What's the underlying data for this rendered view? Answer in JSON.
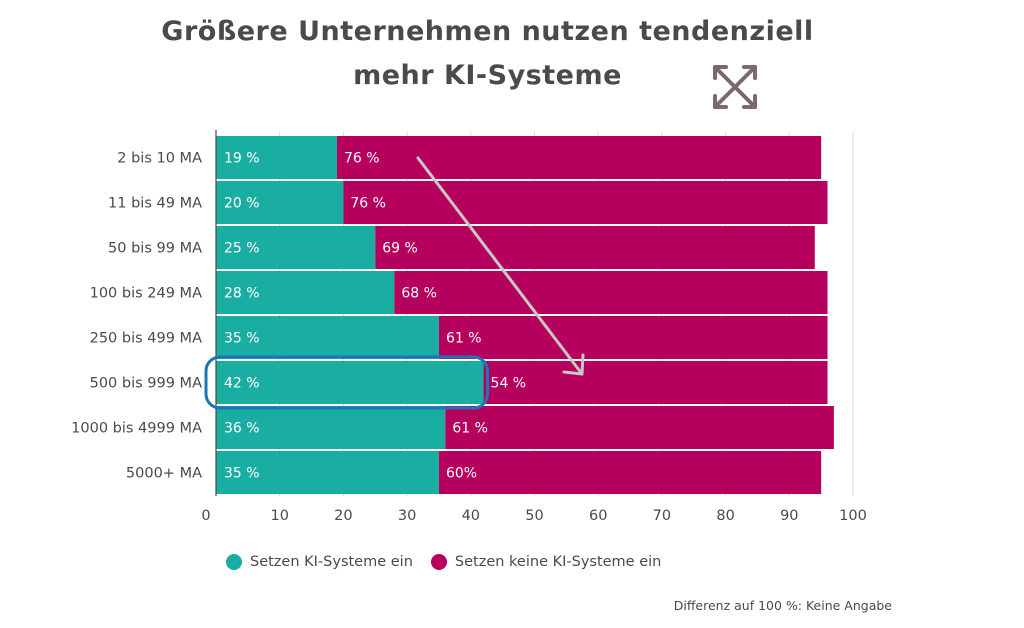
{
  "colors": {
    "teal": "#1aada1",
    "magenta": "#b5005e",
    "arrow": "#c8c8c8",
    "highlight": "#1e74b8",
    "icon": "#7a6a70",
    "text": "#4a4a48",
    "grid": "#d9d9d9"
  },
  "icon": {
    "name": "expand-arrows-icon"
  },
  "legend": {
    "teal_label": "Setzen KI-Systeme ein",
    "magenta_label": "Setzen keine KI-Systeme ein"
  },
  "footnote": "Differenz auf 100 %: Keine Angabe",
  "chart_data": {
    "type": "bar",
    "orientation": "horizontal",
    "stacked": true,
    "title": "Größere Unternehmen nutzen tendenziell mehr KI-Systeme",
    "title_lines": [
      "Größere Unternehmen nutzen tendenziell",
      "mehr KI-Systeme"
    ],
    "categories": [
      "2 bis 10 MA",
      "11 bis 49 MA",
      "50 bis 99 MA",
      "100 bis 249 MA",
      "250 bis 499 MA",
      "500 bis 999 MA",
      "1000 bis 4999 MA",
      "5000+ MA"
    ],
    "series": [
      {
        "name": "Setzen KI-Systeme ein",
        "values": [
          19,
          20,
          25,
          28,
          35,
          42,
          36,
          35
        ],
        "labels": [
          "19 %",
          "20 %",
          "25 %",
          "28 %",
          "35 %",
          "42 %",
          "36 %",
          "35 %"
        ]
      },
      {
        "name": "Setzen keine KI-Systeme ein",
        "values": [
          76,
          76,
          69,
          68,
          61,
          54,
          61,
          60
        ],
        "labels": [
          "76 %",
          "76 %",
          "69 %",
          "68 %",
          "61 %",
          "54 %",
          "61 %",
          "60%"
        ]
      }
    ],
    "xlim": [
      0,
      100
    ],
    "xticks": [
      0,
      10,
      20,
      30,
      40,
      50,
      60,
      70,
      80,
      90,
      100
    ],
    "xtick_labels": [
      "0",
      "10",
      "20",
      "30",
      "40",
      "50",
      "60",
      "70",
      "80",
      "90",
      "100"
    ],
    "grid": true,
    "legend": "bottom",
    "highlighted_category": "500 bis 999 MA",
    "annotation": "trend arrow pointing down-right"
  }
}
